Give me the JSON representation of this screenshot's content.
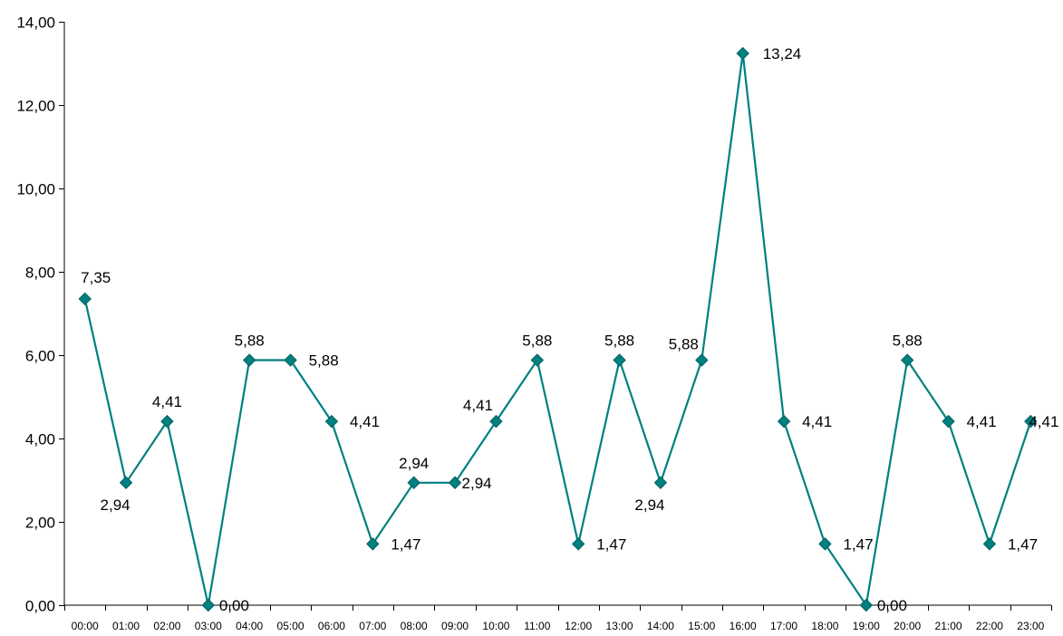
{
  "chart_data": {
    "type": "line",
    "title": "",
    "xlabel": "",
    "ylabel": "",
    "ylim": [
      0,
      14
    ],
    "y_ticks": [
      "0,00",
      "2,00",
      "4,00",
      "6,00",
      "8,00",
      "10,00",
      "12,00",
      "14,00"
    ],
    "categories": [
      "00:00",
      "01:00",
      "02:00",
      "03:00",
      "04:00",
      "05:00",
      "06:00",
      "07:00",
      "08:00",
      "09:00",
      "10:00",
      "11:00",
      "12:00",
      "13:00",
      "14:00",
      "15:00",
      "16:00",
      "17:00",
      "18:00",
      "19:00",
      "20:00",
      "21:00",
      "22:00",
      "23:00"
    ],
    "series": [
      {
        "values": [
          7.35,
          2.94,
          4.41,
          0.0,
          5.88,
          5.88,
          4.41,
          1.47,
          2.94,
          2.94,
          4.41,
          5.88,
          1.47,
          5.88,
          2.94,
          5.88,
          13.24,
          4.41,
          1.47,
          0.0,
          5.88,
          4.41,
          1.47,
          4.41
        ],
        "labels": [
          "7,35",
          "2,94",
          "4,41",
          "0,00",
          "5,88",
          "5,88",
          "4,41",
          "1,47",
          "2,94",
          "2,94",
          "4,41",
          "5,88",
          "1,47",
          "5,88",
          "2,94",
          "5,88",
          "13,24",
          "4,41",
          "1,47",
          "0,00",
          "5,88",
          "4,41",
          "1,47",
          "4,41"
        ],
        "color": "#008080"
      }
    ],
    "grid": false,
    "legend": "none",
    "markers": "diamond",
    "data_labels": true
  }
}
